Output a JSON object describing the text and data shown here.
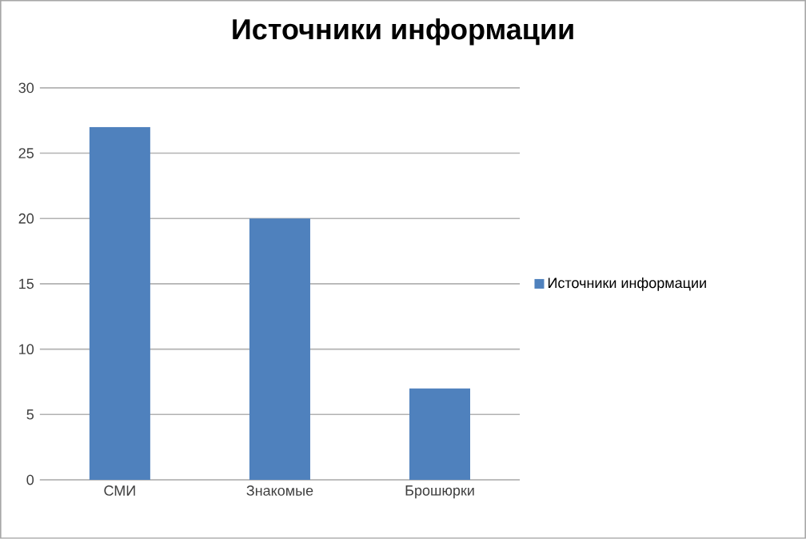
{
  "chart_data": {
    "type": "bar",
    "title": "Источники информации",
    "categories": [
      "СМИ",
      "Знакомые",
      "Брошюрки"
    ],
    "series": [
      {
        "name": "Источники информации",
        "color": "#4f81bd",
        "values": [
          27,
          20,
          7
        ]
      }
    ],
    "ylim": [
      0,
      30
    ],
    "yticks": [
      0,
      5,
      10,
      15,
      20,
      25,
      30
    ],
    "grid": "y",
    "legend": "right"
  }
}
